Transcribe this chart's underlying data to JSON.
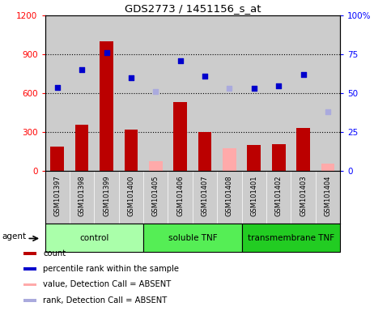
{
  "title": "GDS2773 / 1451156_s_at",
  "samples": [
    "GSM101397",
    "GSM101398",
    "GSM101399",
    "GSM101400",
    "GSM101405",
    "GSM101406",
    "GSM101407",
    "GSM101408",
    "GSM101401",
    "GSM101402",
    "GSM101403",
    "GSM101404"
  ],
  "groups": [
    {
      "name": "control",
      "start": 0,
      "end": 4,
      "color": "#aaffaa"
    },
    {
      "name": "soluble TNF",
      "start": 4,
      "end": 8,
      "color": "#55ee55"
    },
    {
      "name": "transmembrane TNF",
      "start": 8,
      "end": 12,
      "color": "#22cc22"
    }
  ],
  "count_present": [
    190,
    360,
    1000,
    320,
    null,
    530,
    300,
    null,
    200,
    210,
    330,
    null
  ],
  "count_absent": [
    null,
    null,
    null,
    null,
    75,
    null,
    null,
    175,
    null,
    null,
    null,
    60
  ],
  "rank_present": [
    54,
    65,
    76,
    60,
    null,
    71,
    61,
    null,
    53,
    55,
    62,
    null
  ],
  "rank_absent": [
    null,
    null,
    null,
    null,
    51,
    null,
    null,
    53,
    null,
    null,
    null,
    38
  ],
  "ylim_left": [
    0,
    1200
  ],
  "ylim_right": [
    0,
    100
  ],
  "yticks_left": [
    0,
    300,
    600,
    900,
    1200
  ],
  "yticks_right": [
    0,
    25,
    50,
    75,
    100
  ],
  "ytick_labels_left": [
    "0",
    "300",
    "600",
    "900",
    "1200"
  ],
  "ytick_labels_right": [
    "0",
    "25",
    "50",
    "75",
    "100%"
  ],
  "bar_width": 0.55,
  "count_color": "#bb0000",
  "count_absent_color": "#ffaaaa",
  "rank_color": "#0000cc",
  "rank_absent_color": "#aaaadd",
  "bg_color": "#cccccc",
  "agent_label": "agent",
  "legend_items": [
    {
      "color": "#bb0000",
      "label": "count"
    },
    {
      "color": "#0000cc",
      "label": "percentile rank within the sample"
    },
    {
      "color": "#ffaaaa",
      "label": "value, Detection Call = ABSENT"
    },
    {
      "color": "#aaaadd",
      "label": "rank, Detection Call = ABSENT"
    }
  ]
}
